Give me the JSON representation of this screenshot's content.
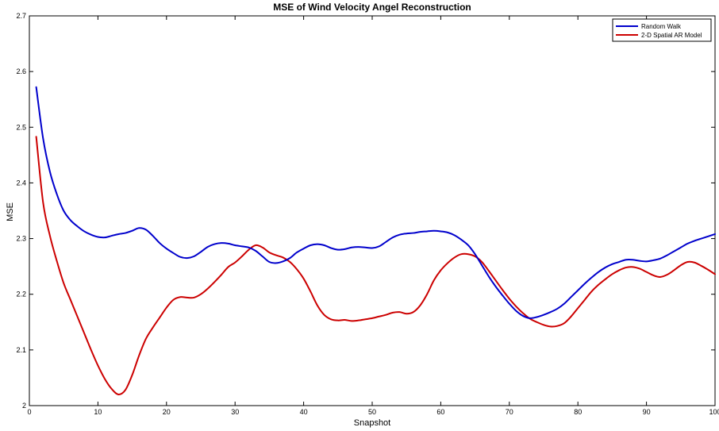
{
  "chart_data": {
    "type": "line",
    "title": "MSE of Wind Velocity Angel Reconstruction",
    "xlabel": "Snapshot",
    "ylabel": "MSE",
    "xlim": [
      0,
      100
    ],
    "ylim": [
      2,
      2.7
    ],
    "xticks": [
      0,
      10,
      20,
      30,
      40,
      50,
      60,
      70,
      80,
      90,
      100
    ],
    "yticks": [
      2,
      2.1,
      2.2,
      2.3,
      2.4,
      2.5,
      2.6,
      2.7
    ],
    "legend_position": "top-right",
    "grid": false,
    "series": [
      {
        "name": "Random Walk",
        "color": "#0000cc",
        "x": [
          1,
          2,
          3,
          4,
          5,
          6,
          7,
          8,
          9,
          10,
          11,
          12,
          13,
          14,
          15,
          16,
          17,
          18,
          19,
          20,
          21,
          22,
          23,
          24,
          25,
          26,
          27,
          28,
          29,
          30,
          31,
          32,
          33,
          34,
          35,
          36,
          37,
          38,
          39,
          40,
          41,
          42,
          43,
          44,
          45,
          46,
          47,
          48,
          49,
          50,
          51,
          52,
          53,
          54,
          55,
          56,
          57,
          58,
          59,
          60,
          61,
          62,
          63,
          64,
          65,
          66,
          67,
          68,
          69,
          70,
          71,
          72,
          73,
          74,
          75,
          76,
          77,
          78,
          79,
          80,
          81,
          82,
          83,
          84,
          85,
          86,
          87,
          88,
          89,
          90,
          91,
          92,
          93,
          94,
          95,
          96,
          97,
          98,
          99,
          100
        ],
        "y": [
          2.572,
          2.48,
          2.42,
          2.38,
          2.35,
          2.333,
          2.322,
          2.313,
          2.307,
          2.303,
          2.302,
          2.305,
          2.308,
          2.31,
          2.314,
          2.319,
          2.316,
          2.305,
          2.292,
          2.282,
          2.274,
          2.267,
          2.265,
          2.268,
          2.276,
          2.285,
          2.29,
          2.292,
          2.291,
          2.288,
          2.286,
          2.284,
          2.278,
          2.268,
          2.258,
          2.256,
          2.259,
          2.265,
          2.275,
          2.282,
          2.288,
          2.29,
          2.288,
          2.283,
          2.28,
          2.281,
          2.284,
          2.285,
          2.284,
          2.283,
          2.286,
          2.294,
          2.302,
          2.307,
          2.309,
          2.31,
          2.312,
          2.313,
          2.314,
          2.313,
          2.311,
          2.306,
          2.298,
          2.288,
          2.272,
          2.252,
          2.232,
          2.214,
          2.198,
          2.183,
          2.17,
          2.161,
          2.157,
          2.159,
          2.163,
          2.168,
          2.174,
          2.183,
          2.195,
          2.207,
          2.219,
          2.23,
          2.24,
          2.248,
          2.254,
          2.258,
          2.262,
          2.262,
          2.26,
          2.259,
          2.261,
          2.264,
          2.27,
          2.277,
          2.284,
          2.291,
          2.296,
          2.3,
          2.304,
          2.308
        ]
      },
      {
        "name": "2-D Spatial AR Model",
        "color": "#cc0000",
        "x": [
          1,
          2,
          3,
          4,
          5,
          6,
          7,
          8,
          9,
          10,
          11,
          12,
          13,
          14,
          15,
          16,
          17,
          18,
          19,
          20,
          21,
          22,
          23,
          24,
          25,
          26,
          27,
          28,
          29,
          30,
          31,
          32,
          33,
          34,
          35,
          36,
          37,
          38,
          39,
          40,
          41,
          42,
          43,
          44,
          45,
          46,
          47,
          48,
          49,
          50,
          51,
          52,
          53,
          54,
          55,
          56,
          57,
          58,
          59,
          60,
          61,
          62,
          63,
          64,
          65,
          66,
          67,
          68,
          69,
          70,
          71,
          72,
          73,
          74,
          75,
          76,
          77,
          78,
          79,
          80,
          81,
          82,
          83,
          84,
          85,
          86,
          87,
          88,
          89,
          90,
          91,
          92,
          93,
          94,
          95,
          96,
          97,
          98,
          99,
          100
        ],
        "y": [
          2.483,
          2.365,
          2.305,
          2.26,
          2.22,
          2.19,
          2.16,
          2.13,
          2.1,
          2.072,
          2.048,
          2.03,
          2.02,
          2.028,
          2.055,
          2.09,
          2.12,
          2.14,
          2.158,
          2.176,
          2.19,
          2.195,
          2.194,
          2.194,
          2.2,
          2.21,
          2.222,
          2.235,
          2.249,
          2.257,
          2.268,
          2.28,
          2.288,
          2.284,
          2.275,
          2.27,
          2.266,
          2.258,
          2.245,
          2.228,
          2.205,
          2.18,
          2.163,
          2.155,
          2.153,
          2.154,
          2.152,
          2.153,
          2.155,
          2.157,
          2.16,
          2.163,
          2.167,
          2.168,
          2.165,
          2.168,
          2.18,
          2.2,
          2.225,
          2.243,
          2.256,
          2.266,
          2.272,
          2.272,
          2.268,
          2.258,
          2.242,
          2.225,
          2.208,
          2.192,
          2.178,
          2.166,
          2.156,
          2.15,
          2.145,
          2.142,
          2.143,
          2.148,
          2.16,
          2.175,
          2.19,
          2.205,
          2.217,
          2.227,
          2.236,
          2.243,
          2.248,
          2.249,
          2.246,
          2.24,
          2.234,
          2.231,
          2.235,
          2.243,
          2.252,
          2.258,
          2.257,
          2.251,
          2.244,
          2.236
        ]
      }
    ]
  }
}
